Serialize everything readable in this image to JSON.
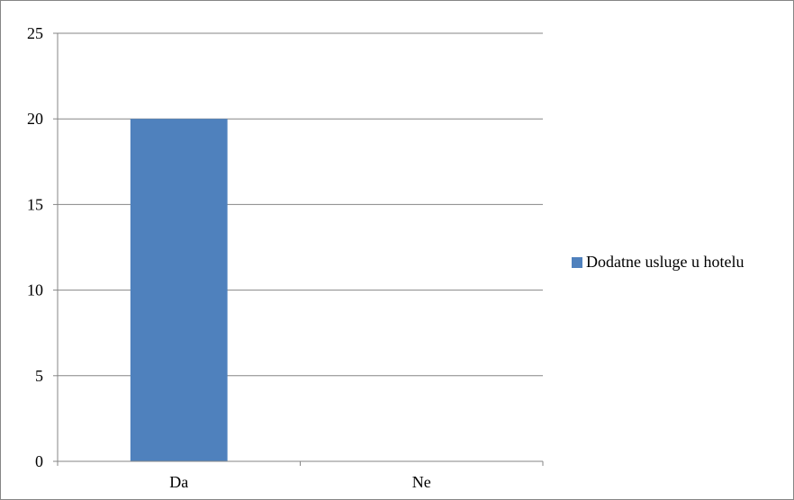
{
  "chart_data": {
    "type": "bar",
    "categories": [
      "Da",
      "Ne"
    ],
    "series": [
      {
        "name": "Dodatne usluge u hotelu",
        "values": [
          20,
          0
        ],
        "color": "#4F81BD"
      }
    ],
    "ylim": [
      0,
      25
    ],
    "yticks": [
      0,
      5,
      10,
      15,
      20,
      25
    ],
    "grid": true,
    "legend_position": "right"
  }
}
